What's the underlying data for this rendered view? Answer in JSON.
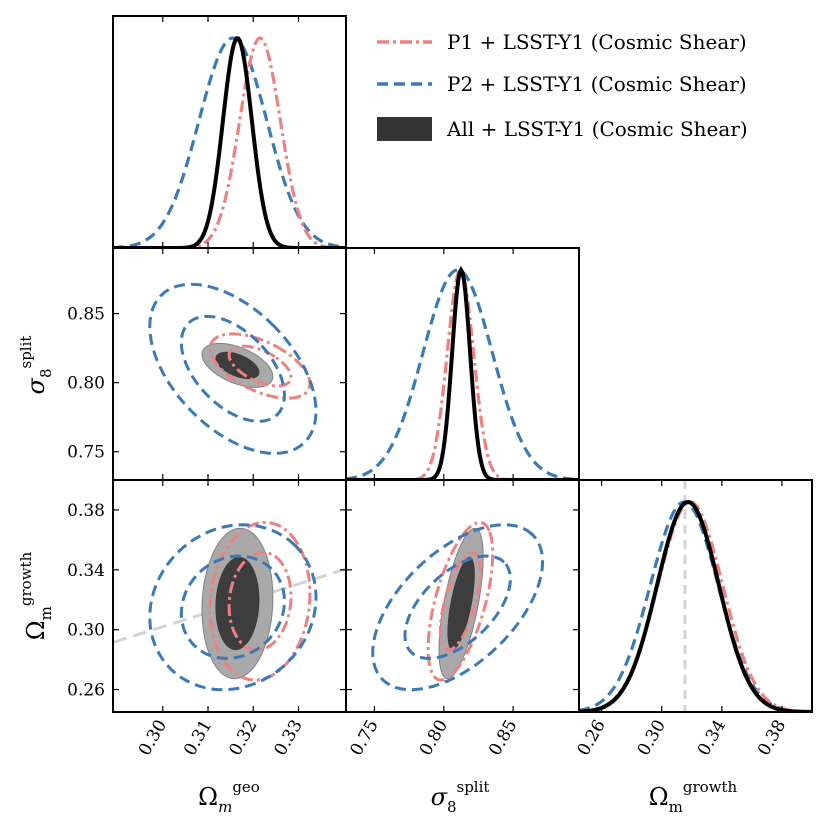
{
  "chart_data": {
    "type": "triangle-corner-plot",
    "parameters": [
      {
        "key": "omega_geo",
        "label_main": "Ω",
        "label_sub": "m",
        "label_sup": "geo"
      },
      {
        "key": "sigma8_split",
        "label_main": "σ",
        "label_sub": "8",
        "label_sup": "split"
      },
      {
        "key": "omega_growth",
        "label_main": "Ω",
        "label_sub": "m",
        "label_sup": "growth"
      }
    ],
    "axes": {
      "omega_geo": {
        "range": [
          0.289,
          0.3405
        ],
        "ticks": [
          0.3,
          0.31,
          0.32,
          0.33
        ],
        "tick_labels": [
          "0.30",
          "0.31",
          "0.32",
          "0.33"
        ]
      },
      "sigma8_split": {
        "range": [
          0.7295,
          0.8975
        ],
        "ticks": [
          0.75,
          0.8,
          0.85
        ],
        "tick_labels": [
          "0.75",
          "0.80",
          "0.85"
        ]
      },
      "omega_growth": {
        "range": [
          0.245,
          0.4
        ],
        "ticks": [
          0.26,
          0.3,
          0.34,
          0.38
        ],
        "tick_labels": [
          "0.26",
          "0.30",
          "0.34",
          "0.38"
        ]
      }
    },
    "series": [
      {
        "name": "P1 + LSST-Y1 (Cosmic Shear)",
        "style": "dashdot",
        "color": "#f08080",
        "mean": {
          "omega_geo": 0.3215,
          "sigma8_split": 0.812,
          "omega_growth": 0.319
        },
        "sigma": {
          "omega_geo": 0.0045,
          "sigma8_split": 0.0095,
          "omega_growth": 0.0215
        }
      },
      {
        "name": "P2 + LSST-Y1 (Cosmic Shear)",
        "style": "dashed",
        "color": "#3a7ab8",
        "mean": {
          "omega_geo": 0.3155,
          "sigma8_split": 0.81,
          "omega_growth": 0.315
        },
        "sigma": {
          "omega_geo": 0.0075,
          "sigma8_split": 0.025,
          "omega_growth": 0.0225
        }
      },
      {
        "name": "All + LSST-Y1 (Cosmic Shear)",
        "style": "filled",
        "color": "#000000",
        "mean": {
          "omega_geo": 0.3165,
          "sigma8_split": 0.8125,
          "omega_growth": 0.3175
        },
        "sigma": {
          "omega_geo": 0.0032,
          "sigma8_split": 0.0065,
          "omega_growth": 0.0205
        }
      }
    ],
    "reference_line": {
      "parameter": "omega_growth",
      "value": 0.3155,
      "color": "#d3d3d3",
      "style": "dashed"
    },
    "trend_line": {
      "panel": "omega_geo-omega_growth",
      "from": [
        0.289,
        0.2915
      ],
      "to": [
        0.3405,
        0.3405
      ],
      "color": "#d3d3d3"
    }
  }
}
